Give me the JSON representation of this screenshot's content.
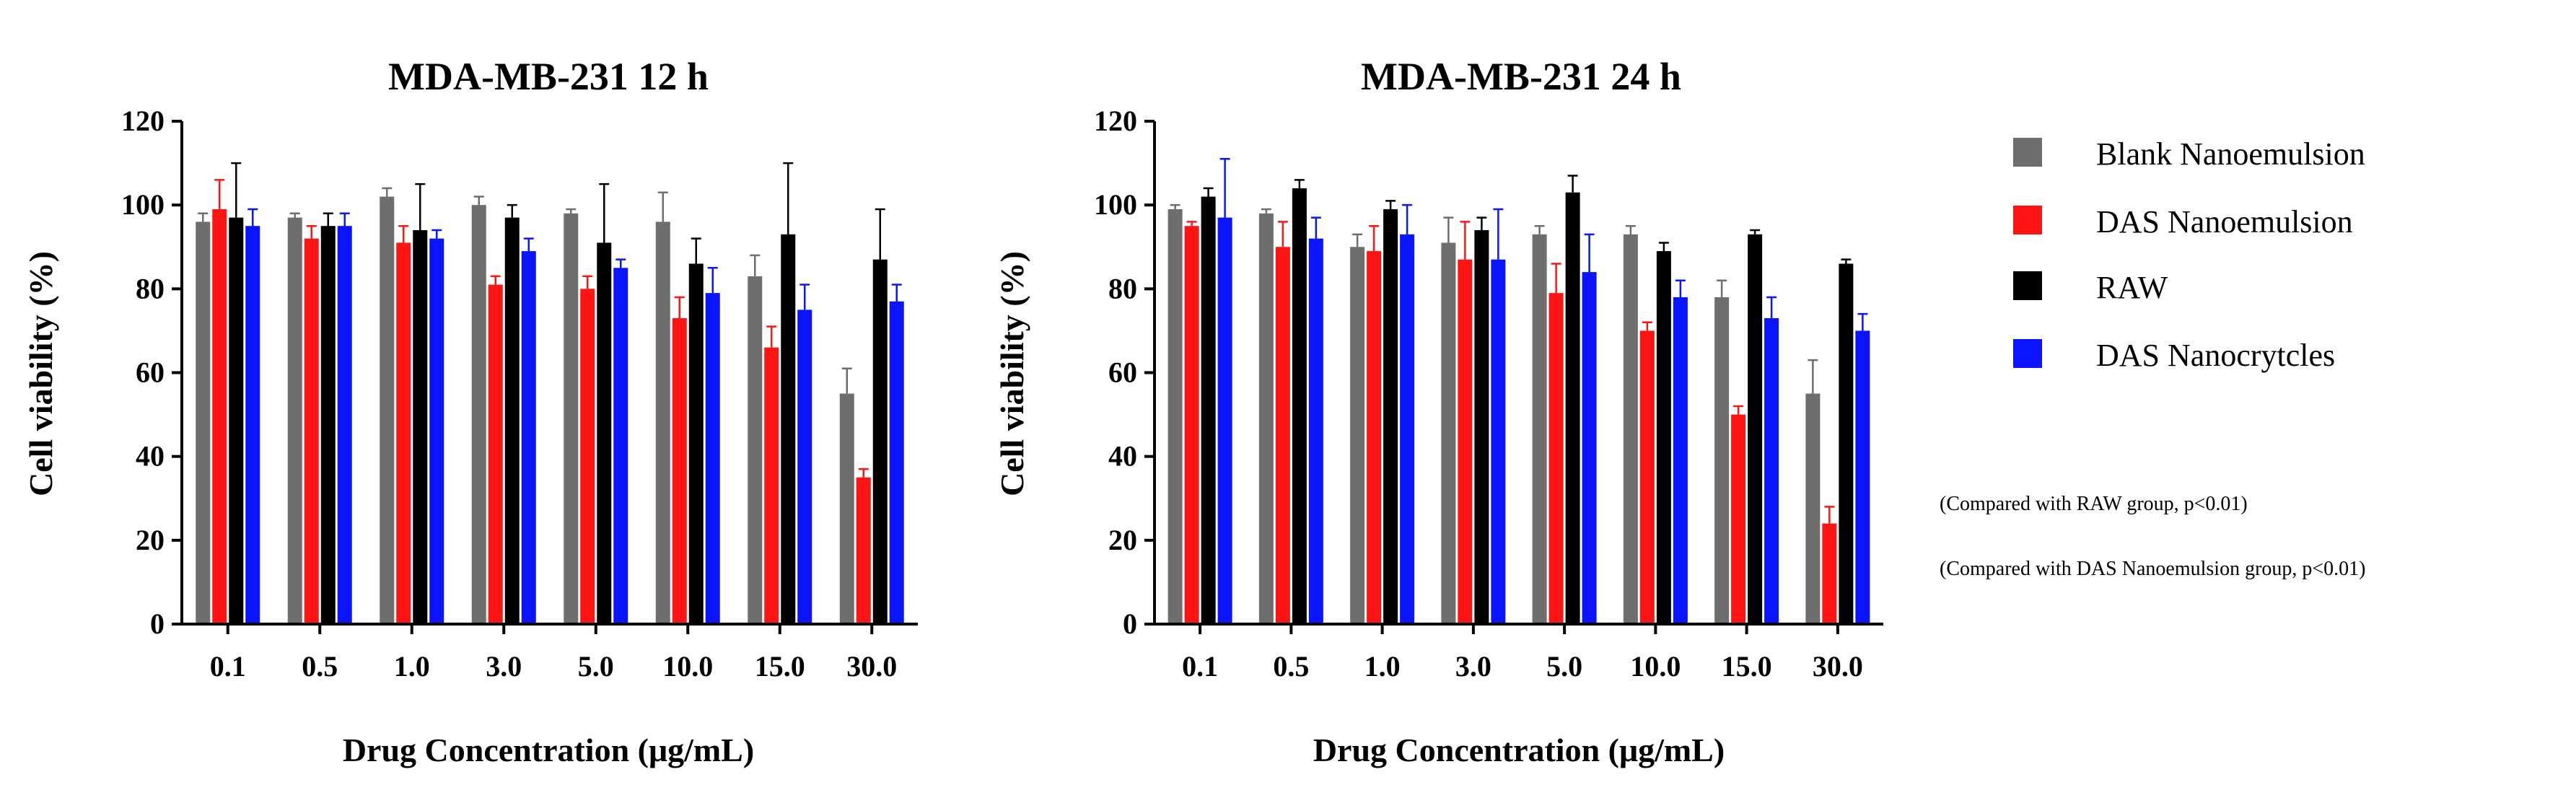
{
  "colors": {
    "blank": "#6e6e6e",
    "das_nanoemulsion": "#ff1414",
    "raw": "#000000",
    "das_nanocrystals": "#0a14ff"
  },
  "legend": {
    "items": [
      {
        "label": "Blank Nanoemulsion",
        "color_key": "blank"
      },
      {
        "label": "DAS Nanoemulsion",
        "color_key": "das_nanoemulsion"
      },
      {
        "label": "RAW",
        "color_key": "raw"
      },
      {
        "label": "DAS Nanocrytcles",
        "color_key": "das_nanocrystals"
      }
    ],
    "placement": "right"
  },
  "notes": {
    "note1": "(Compared with RAW group,  p<0.01)",
    "note2": "(Compared with DAS Nanoemulsion group,  p<0.01)"
  },
  "chart_data": [
    {
      "type": "bar",
      "title": "MDA-MB-231 12 h",
      "xlabel": "Drug Concentration (μg/mL)",
      "ylabel": "Cell viability (%)",
      "ylim": [
        0,
        120
      ],
      "yticks": [
        "0",
        "20",
        "40",
        "60",
        "80",
        "100",
        "120"
      ],
      "categories": [
        "0.1",
        "0.5",
        "1.0",
        "3.0",
        "5.0",
        "10.0",
        "15.0",
        "30.0"
      ],
      "series": [
        {
          "name": "Blank Nanoemulsion",
          "color_key": "blank",
          "values": [
            96,
            97,
            102,
            100,
            98,
            96,
            83,
            55
          ],
          "errors": [
            2,
            1,
            2,
            2,
            1,
            7,
            5,
            6
          ]
        },
        {
          "name": "DAS Nanoemulsion",
          "color_key": "das_nanoemulsion",
          "values": [
            99,
            92,
            91,
            81,
            80,
            73,
            66,
            35
          ],
          "errors": [
            7,
            3,
            4,
            2,
            3,
            5,
            5,
            2
          ]
        },
        {
          "name": "RAW",
          "color_key": "raw",
          "values": [
            97,
            95,
            94,
            97,
            91,
            86,
            93,
            87
          ],
          "errors": [
            13,
            3,
            11,
            3,
            14,
            6,
            17,
            12
          ]
        },
        {
          "name": "DAS Nanocrytcles",
          "color_key": "das_nanocrystals",
          "values": [
            95,
            95,
            92,
            89,
            85,
            79,
            75,
            77
          ],
          "errors": [
            4,
            3,
            2,
            3,
            2,
            6,
            6,
            4
          ]
        }
      ]
    },
    {
      "type": "bar",
      "title": "MDA-MB-231 24 h",
      "xlabel": "Drug Concentration (μg/mL)",
      "ylabel": "Cell viability (%)",
      "ylim": [
        0,
        120
      ],
      "yticks": [
        "0",
        "20",
        "40",
        "60",
        "80",
        "100",
        "120"
      ],
      "categories": [
        "0.1",
        "0.5",
        "1.0",
        "3.0",
        "5.0",
        "10.0",
        "15.0",
        "30.0"
      ],
      "series": [
        {
          "name": "Blank Nanoemulsion",
          "color_key": "blank",
          "values": [
            99,
            98,
            90,
            91,
            93,
            93,
            78,
            55
          ],
          "errors": [
            1,
            1,
            3,
            6,
            2,
            2,
            4,
            8
          ]
        },
        {
          "name": "DAS Nanoemulsion",
          "color_key": "das_nanoemulsion",
          "values": [
            95,
            90,
            89,
            87,
            79,
            70,
            50,
            24
          ],
          "errors": [
            1,
            6,
            6,
            9,
            7,
            2,
            2,
            4
          ]
        },
        {
          "name": "RAW",
          "color_key": "raw",
          "values": [
            102,
            104,
            99,
            94,
            103,
            89,
            93,
            86
          ],
          "errors": [
            2,
            2,
            2,
            3,
            4,
            2,
            1,
            1
          ]
        },
        {
          "name": "DAS Nanocrytcles",
          "color_key": "das_nanocrystals",
          "values": [
            97,
            92,
            93,
            87,
            84,
            78,
            73,
            70
          ],
          "errors": [
            14,
            5,
            7,
            12,
            9,
            4,
            5,
            4
          ]
        }
      ]
    }
  ]
}
